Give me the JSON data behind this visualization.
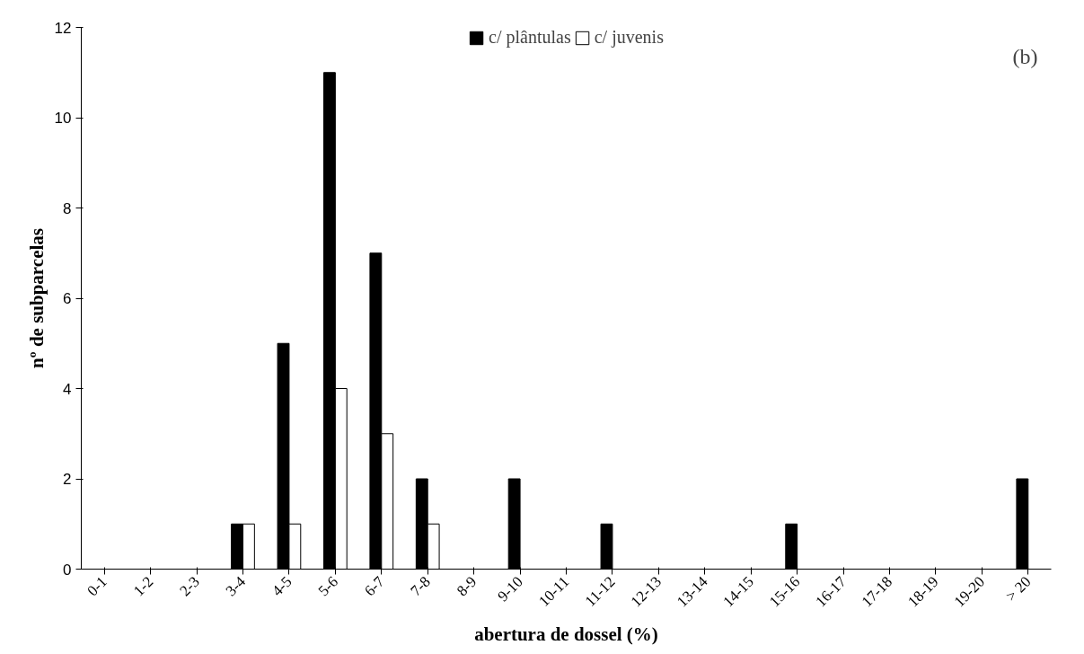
{
  "chart_data": {
    "type": "bar",
    "xlabel": "abertura de dossel (%)",
    "ylabel": "nº de subparcelas",
    "categories": [
      "0-1",
      "1-2",
      "2-3",
      "3-4",
      "4-5",
      "5-6",
      "6-7",
      "7-8",
      "8-9",
      "9-10",
      "10-11",
      "11-12",
      "12-13",
      "13-14",
      "14-15",
      "15-16",
      "16-17",
      "17-18",
      "18-19",
      "19-20",
      "> 20"
    ],
    "series": [
      {
        "name": "c/ plântulas",
        "color": "#000000",
        "values": [
          0,
          0,
          0,
          1,
          5,
          11,
          7,
          2,
          0,
          2,
          0,
          1,
          0,
          0,
          0,
          1,
          0,
          0,
          0,
          0,
          2
        ]
      },
      {
        "name": "c/ juvenis",
        "color": "#ffffff",
        "values": [
          0,
          0,
          0,
          1,
          1,
          4,
          3,
          1,
          0,
          0,
          0,
          0,
          0,
          0,
          0,
          0,
          0,
          0,
          0,
          0,
          0
        ]
      }
    ],
    "ylim": [
      0,
      12
    ],
    "yticks": [
      0,
      2,
      4,
      6,
      8,
      10,
      12
    ],
    "grid": false,
    "legend": "top",
    "annotations": [
      "(b)"
    ]
  }
}
